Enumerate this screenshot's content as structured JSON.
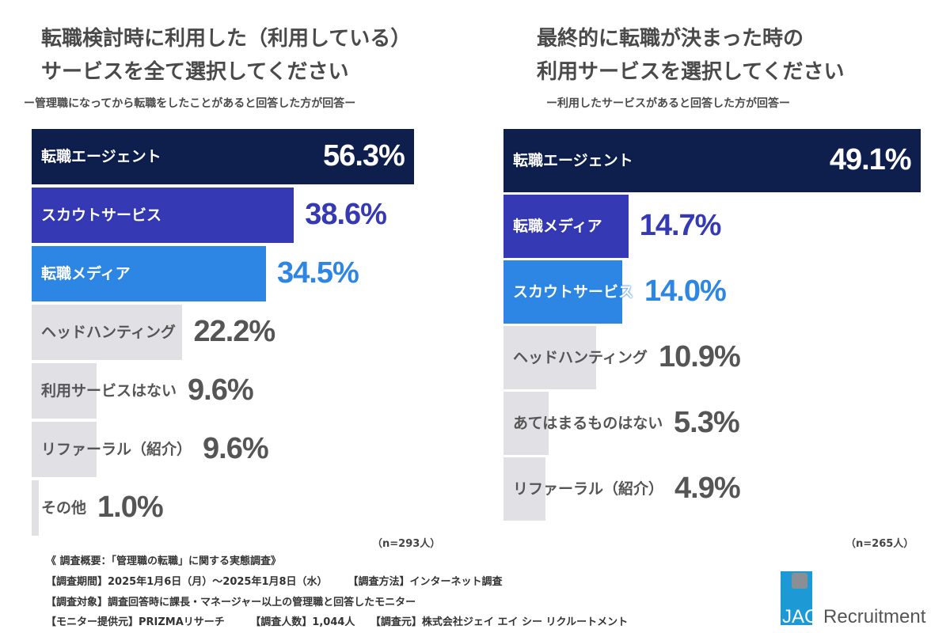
{
  "colors": {
    "navy": "#0e1f4d",
    "indigo": "#3539b3",
    "blue": "#2d86e3",
    "gray": "#e1e0e4",
    "text": "#555555"
  },
  "chart_data": [
    {
      "type": "bar",
      "orientation": "horizontal",
      "title": "転職検討時に利用した（利用している）サービスを全て選択してください",
      "subtitle": "ー管理職になってから転職をしたことがあると回答した方が回答ー",
      "categories": [
        "転職エージェント",
        "スカウトサービス",
        "転職メディア",
        "ヘッドハンティング",
        "利用サービスはない",
        "リファーラル（紹介）",
        "その他"
      ],
      "values": [
        56.3,
        38.6,
        34.5,
        22.2,
        9.6,
        9.6,
        1.0
      ],
      "value_labels": [
        "56.3%",
        "38.6%",
        "34.5%",
        "22.2%",
        "9.6%",
        "9.6%",
        "1.0%"
      ],
      "bar_colors": [
        "navy",
        "indigo",
        "blue",
        "gray",
        "gray",
        "gray",
        "gray"
      ],
      "note": "（n=293人）"
    },
    {
      "type": "bar",
      "orientation": "horizontal",
      "title": "最終的に転職が決まった時の利用サービスを選択してください",
      "subtitle": "ー利用したサービスがあると回答した方が回答ー",
      "categories": [
        "転職エージェント",
        "転職メディア",
        "スカウトサービス",
        "ヘッドハンティング",
        "あてはまるものはない",
        "リファーラル（紹介）"
      ],
      "values": [
        49.1,
        14.7,
        14.0,
        10.9,
        5.3,
        4.9
      ],
      "value_labels": [
        "49.1%",
        "14.7%",
        "14.0%",
        "10.9%",
        "5.3%",
        "4.9%"
      ],
      "bar_colors": [
        "navy",
        "indigo",
        "blue",
        "gray",
        "gray",
        "gray"
      ],
      "note": "（n=265人）"
    }
  ],
  "titles": {
    "left_line1": "転職検討時に利用した（利用している）",
    "left_line2": "サービスを全て選択してください",
    "left_sub": "ー管理職になってから転職をしたことがあると回答した方が回答ー",
    "right_line1": "最終的に転職が決まった時の",
    "right_line2": "利用サービスを選択してください",
    "right_sub": "ー利用したサービスがあると回答した方が回答ー",
    "left_n": "（n=293人）",
    "right_n": "（n=265人）"
  },
  "footer": {
    "line1": "《 調査概要：「管理職の転職」に関する実態調査》",
    "line2": "【調査期間】2025年1月6日（月）～2025年1月8日（水）　　　【調査方法】インターネット調査",
    "line3": "【調査対象】調査回答時に課長・マネージャー以上の管理職と回答したモニター",
    "line4": "【モニター提供元】PRIZMAリサーチ　　　【調査人数】1,044人　　【調査元】株式会社ジェイ エイ シー リクルートメント"
  },
  "logo": {
    "text": "JAC Recruitment"
  }
}
